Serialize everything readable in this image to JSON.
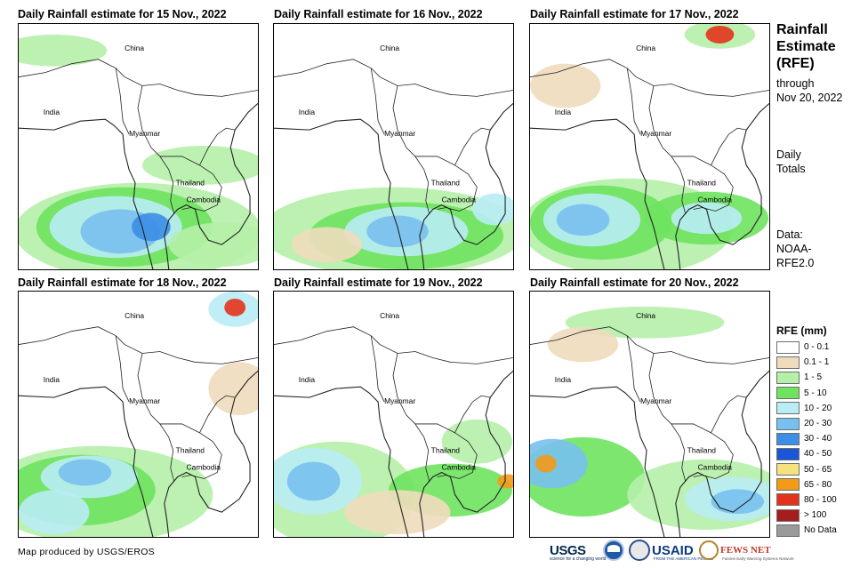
{
  "panels": [
    {
      "title": "Daily Rainfall estimate for 15 Nov., 2022",
      "labels": {
        "china": "China",
        "india": "India",
        "myanmar": "Myanmar",
        "thailand": "Thailand",
        "cambodia": "Cambodia"
      }
    },
    {
      "title": "Daily Rainfall estimate for 16 Nov., 2022",
      "labels": {
        "china": "China",
        "india": "India",
        "myanmar": "Myanmar",
        "thailand": "Thailand",
        "cambodia": "Cambodia"
      }
    },
    {
      "title": "Daily Rainfall estimate for 17 Nov., 2022",
      "labels": {
        "china": "China",
        "india": "India",
        "myanmar": "Myanmar",
        "thailand": "Thailand",
        "cambodia": "Cambodia"
      }
    },
    {
      "title": "Daily Rainfall estimate for 18 Nov., 2022",
      "labels": {
        "china": "China",
        "india": "India",
        "myanmar": "Myanmar",
        "thailand": "Thailand",
        "cambodia": "Cambodia"
      }
    },
    {
      "title": "Daily Rainfall estimate for 19 Nov., 2022",
      "labels": {
        "china": "China",
        "india": "India",
        "myanmar": "Myanmar",
        "thailand": "Thailand",
        "cambodia": "Cambodia"
      }
    },
    {
      "title": "Daily Rainfall estimate for 20 Nov., 2022",
      "labels": {
        "china": "China",
        "india": "India",
        "myanmar": "Myanmar",
        "thailand": "Thailand",
        "cambodia": "Cambodia"
      }
    }
  ],
  "sidebar": {
    "title_line1": "Rainfall",
    "title_line2": "Estimate",
    "title_line3": "(RFE)",
    "through_label": "through",
    "through_date": "Nov 20, 2022",
    "totals_line1": "Daily",
    "totals_line2": "Totals",
    "source_line1": "Data:",
    "source_line2": "NOAA-",
    "source_line3": "RFE2.0"
  },
  "legend": {
    "title": "RFE (mm)",
    "items": [
      {
        "label": "0 - 0.1",
        "color": "#ffffff"
      },
      {
        "label": "0.1 - 1",
        "color": "#f0dcbc"
      },
      {
        "label": "1 - 5",
        "color": "#b5f0a8"
      },
      {
        "label": "5 - 10",
        "color": "#6ee35f"
      },
      {
        "label": "10 - 20",
        "color": "#b9ecf5"
      },
      {
        "label": "20 - 30",
        "color": "#78c0f0"
      },
      {
        "label": "30 - 40",
        "color": "#3c8ee6"
      },
      {
        "label": "40 - 50",
        "color": "#1c56d8"
      },
      {
        "label": "50 - 65",
        "color": "#f6e27c"
      },
      {
        "label": "65 - 80",
        "color": "#f39a18"
      },
      {
        "label": "80 - 100",
        "color": "#e3331c"
      },
      {
        "label": "> 100",
        "color": "#a51d1d"
      },
      {
        "label": "No Data",
        "color": "#9a9a9a"
      }
    ]
  },
  "footer": {
    "credit": "Map produced by USGS/EROS"
  },
  "logos": {
    "usgs": "USGS",
    "usgs_tagline": "science for a changing world",
    "usaid": "USAID",
    "usaid_tagline": "FROM THE AMERICAN PEOPLE",
    "fewsnet": "FEWS NET",
    "fewsnet_tagline": "Famine Early Warning Systems Network"
  }
}
